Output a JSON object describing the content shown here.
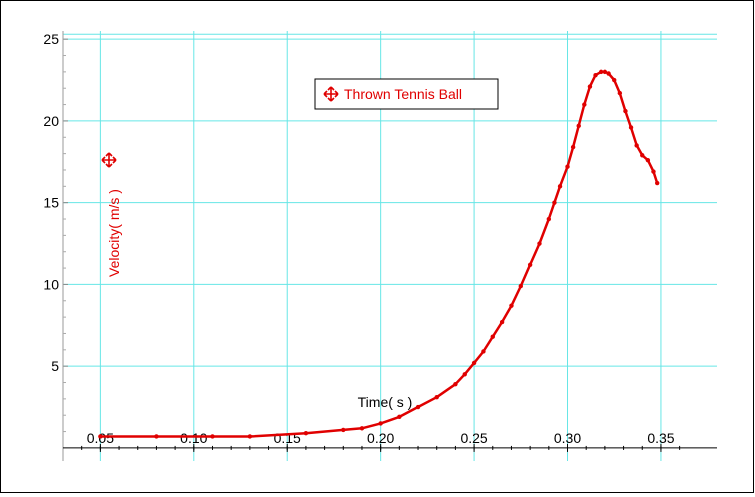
{
  "chart_data": {
    "type": "line",
    "title": "",
    "xlabel": "Time( s )",
    "ylabel": "Velocity( m/s )",
    "xlim": [
      0.03,
      0.38
    ],
    "ylim": [
      -0.8,
      25.5
    ],
    "x_ticks": [
      "0.05",
      "0.10",
      "0.15",
      "0.20",
      "0.25",
      "0.30",
      "0.35"
    ],
    "y_ticks": [
      "5",
      "10",
      "15",
      "20",
      "25"
    ],
    "grid": true,
    "legend_position": "top-center",
    "colors": {
      "series": "#e00000",
      "grid": "#66e6e6",
      "axis": "#000000"
    },
    "series": [
      {
        "name": "Thrown Tennis Ball",
        "marker_icon": "crosshair-arrows-icon",
        "x": [
          0.05,
          0.08,
          0.11,
          0.13,
          0.16,
          0.18,
          0.19,
          0.2,
          0.21,
          0.22,
          0.23,
          0.24,
          0.245,
          0.25,
          0.255,
          0.26,
          0.265,
          0.27,
          0.275,
          0.28,
          0.285,
          0.29,
          0.293,
          0.296,
          0.3,
          0.303,
          0.306,
          0.309,
          0.312,
          0.315,
          0.318,
          0.32,
          0.322,
          0.325,
          0.328,
          0.331,
          0.334,
          0.337,
          0.34,
          0.343,
          0.346,
          0.348
        ],
        "y": [
          0.7,
          0.7,
          0.7,
          0.7,
          0.9,
          1.1,
          1.2,
          1.5,
          1.9,
          2.5,
          3.1,
          3.9,
          4.5,
          5.2,
          5.9,
          6.8,
          7.7,
          8.7,
          9.9,
          11.2,
          12.5,
          14.0,
          15.0,
          16.0,
          17.2,
          18.4,
          19.7,
          21.0,
          22.1,
          22.8,
          23.0,
          23.0,
          22.9,
          22.5,
          21.7,
          20.6,
          19.6,
          18.5,
          17.9,
          17.6,
          16.9,
          16.2
        ]
      }
    ]
  }
}
